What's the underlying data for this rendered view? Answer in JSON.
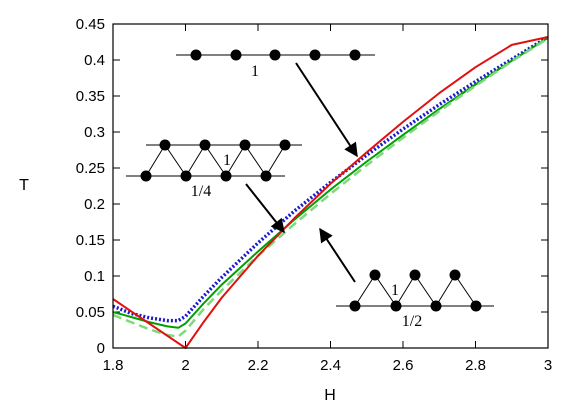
{
  "chart_data": {
    "type": "line",
    "xlabel": "H",
    "ylabel": "T",
    "xlim": [
      1.8,
      3.0
    ],
    "ylim": [
      0,
      0.45
    ],
    "xticks": [
      1.8,
      2.0,
      2.2,
      2.4,
      2.6,
      2.8,
      3.0
    ],
    "xtick_labels": [
      "1.8",
      "2",
      "2.2",
      "2.4",
      "2.6",
      "2.8",
      "3"
    ],
    "yticks": [
      0,
      0.05,
      0.1,
      0.15,
      0.2,
      0.25,
      0.3,
      0.35,
      0.4,
      0.45
    ],
    "ytick_labels": [
      "0",
      "0.05",
      "0.1",
      "0.15",
      "0.2",
      "0.25",
      "0.3",
      "0.35",
      "0.4",
      "0.45"
    ],
    "grid": false,
    "series": [
      {
        "color": "#1a1acc",
        "style": "dotted",
        "x": [
          1.8,
          1.85,
          1.9,
          1.95,
          1.98,
          2.0,
          2.05,
          2.1,
          2.2,
          2.3,
          2.4,
          2.5,
          2.6,
          2.7,
          2.8,
          2.9,
          3.0
        ],
        "y": [
          0.058,
          0.048,
          0.042,
          0.038,
          0.038,
          0.044,
          0.072,
          0.098,
          0.146,
          0.19,
          0.23,
          0.268,
          0.304,
          0.338,
          0.37,
          0.401,
          0.432
        ]
      },
      {
        "color": "#00a000",
        "style": "solid",
        "x": [
          1.8,
          1.85,
          1.9,
          1.95,
          1.98,
          2.0,
          2.05,
          2.1,
          2.2,
          2.3,
          2.4,
          2.5,
          2.6,
          2.7,
          2.8,
          2.9,
          3.0
        ],
        "y": [
          0.05,
          0.043,
          0.036,
          0.03,
          0.028,
          0.034,
          0.062,
          0.088,
          0.134,
          0.178,
          0.22,
          0.259,
          0.296,
          0.332,
          0.366,
          0.399,
          0.431
        ]
      },
      {
        "color": "#7fd87f",
        "style": "dashed",
        "x": [
          1.8,
          1.85,
          1.9,
          1.95,
          1.98,
          2.0,
          2.05,
          2.1,
          2.2,
          2.3,
          2.4,
          2.5,
          2.6,
          2.7,
          2.8,
          2.9,
          3.0
        ],
        "y": [
          0.046,
          0.036,
          0.026,
          0.018,
          0.016,
          0.024,
          0.054,
          0.08,
          0.128,
          0.172,
          0.214,
          0.254,
          0.292,
          0.329,
          0.364,
          0.398,
          0.43
        ]
      },
      {
        "color": "#e01010",
        "style": "solid",
        "x": [
          1.8,
          1.85,
          1.9,
          1.95,
          2.0,
          2.05,
          2.1,
          2.2,
          2.3,
          2.4,
          2.5,
          2.6,
          2.7,
          2.8,
          2.9,
          3.0
        ],
        "y": [
          0.068,
          0.051,
          0.034,
          0.017,
          0.0,
          0.036,
          0.07,
          0.128,
          0.18,
          0.228,
          0.272,
          0.314,
          0.354,
          0.39,
          0.421,
          0.432
        ]
      }
    ],
    "insets": [
      {
        "id": "chain",
        "labels": [
          "1"
        ]
      },
      {
        "id": "sawtooth-a",
        "labels": [
          "1",
          "1/4"
        ]
      },
      {
        "id": "sawtooth-b",
        "labels": [
          "1",
          "1/2"
        ]
      }
    ]
  }
}
